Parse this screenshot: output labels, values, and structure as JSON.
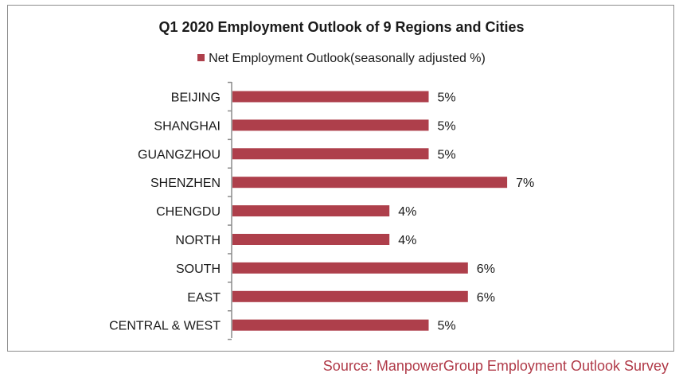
{
  "chart_data": {
    "type": "bar",
    "orientation": "horizontal",
    "title": "Q1 2020 Employment Outlook of 9 Regions and Cities",
    "categories": [
      "BEIJING",
      "SHANGHAI",
      "GUANGZHOU",
      "SHENZHEN",
      "CHENGDU",
      "NORTH",
      "SOUTH",
      "EAST",
      "CENTRAL & WEST"
    ],
    "series": [
      {
        "name": "Net Employment Outlook(seasonally adjusted %)",
        "values": [
          5,
          5,
          5,
          7,
          4,
          4,
          6,
          6,
          5
        ],
        "data_labels": [
          "5%",
          "5%",
          "5%",
          "7%",
          "4%",
          "4%",
          "6%",
          "6%",
          "5%"
        ]
      }
    ],
    "xlim": [
      0,
      7
    ],
    "grid": false,
    "legend_position": "top",
    "bar_color": "#ae3f4b"
  },
  "source": {
    "text": "Source: ManpowerGroup Employment Outlook Survey",
    "color": "#b03a48"
  }
}
